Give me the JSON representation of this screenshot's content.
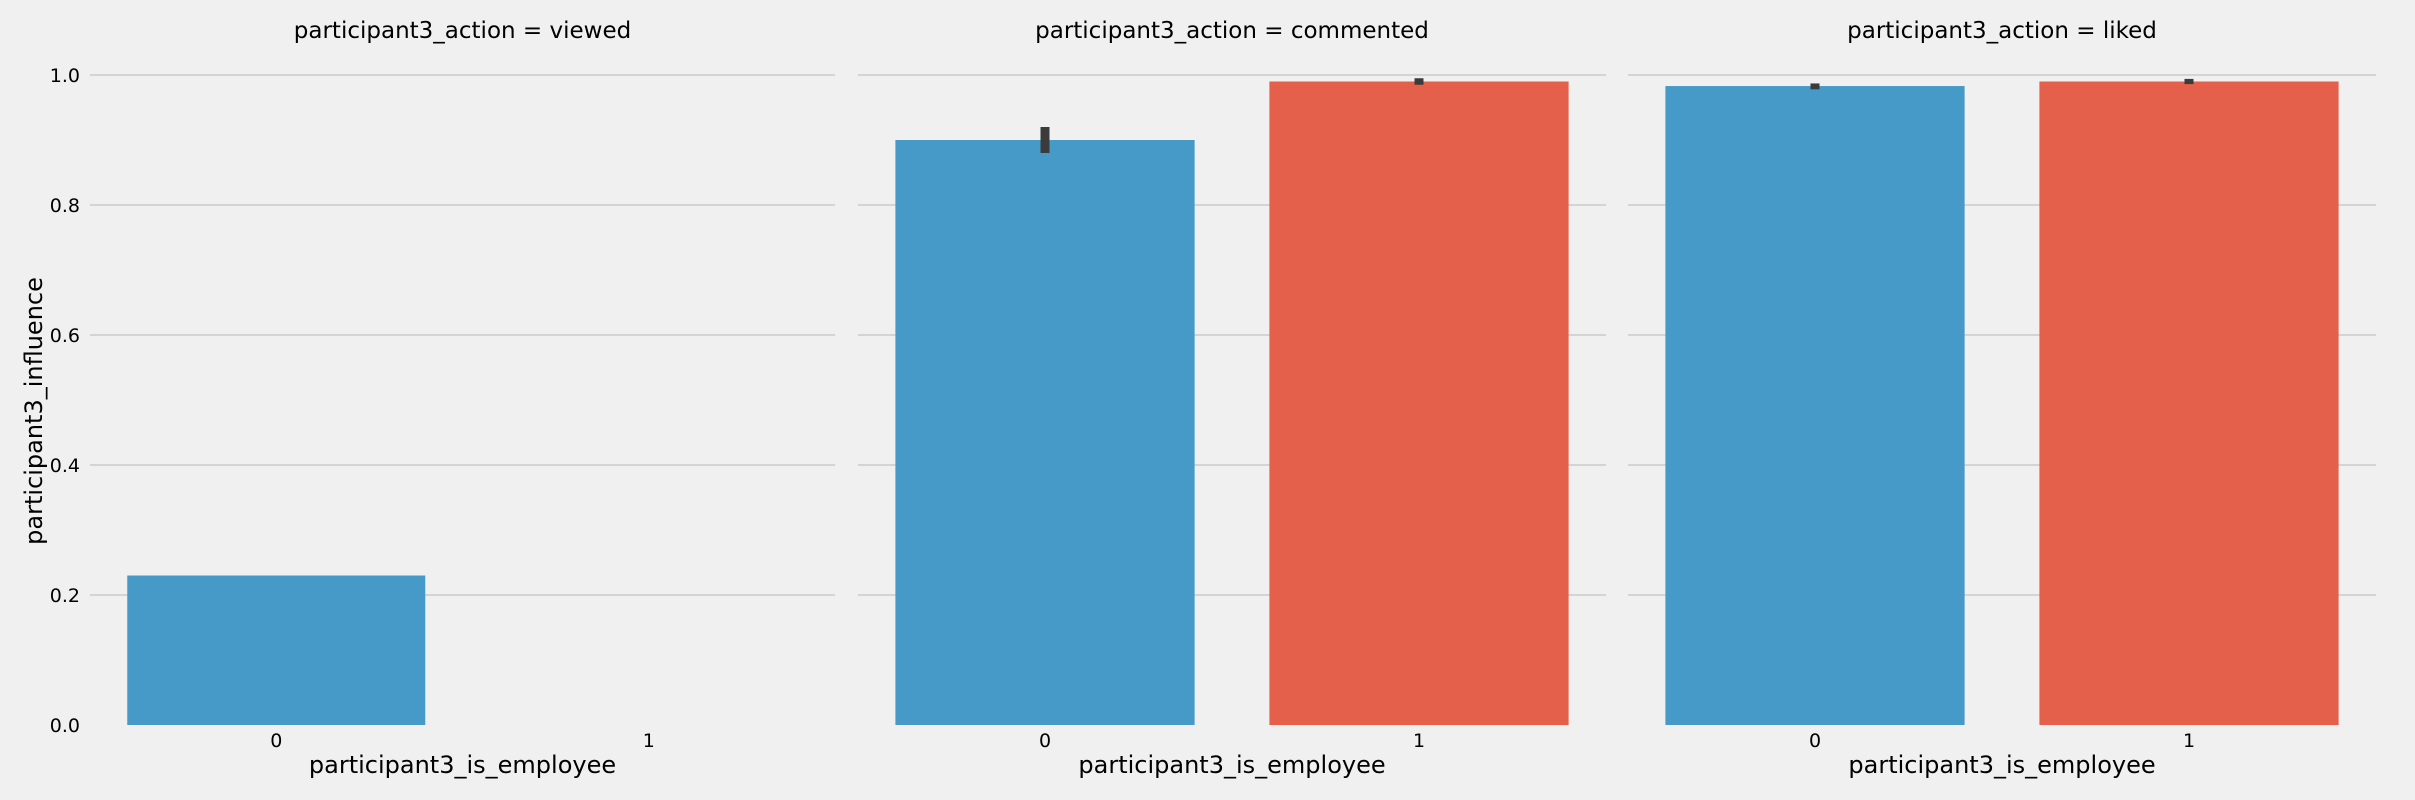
{
  "colors": {
    "background": "#f0f0f0",
    "grid": "#cbcbcb",
    "employee_0": "#459ac7",
    "employee_1": "#e5604a",
    "error_bar": "#3b3b3b"
  },
  "chart_data": {
    "type": "bar",
    "layout": "facet-grid-3-columns",
    "grid": true,
    "sharey": true,
    "ylabel": "participant3_influence",
    "ylim": [
      0,
      1.0
    ],
    "yticks": [
      "0.0",
      "0.2",
      "0.4",
      "0.6",
      "0.8",
      "1.0"
    ],
    "facets": [
      {
        "title": "participant3_action = viewed",
        "xlabel": "participant3_is_employee",
        "categories": [
          "0",
          "1"
        ],
        "values": [
          0.23,
          null
        ],
        "errors": [
          null,
          null
        ]
      },
      {
        "title": "participant3_action = commented",
        "xlabel": "participant3_is_employee",
        "categories": [
          "0",
          "1"
        ],
        "values": [
          0.9,
          0.99
        ],
        "errors": [
          [
            0.88,
            0.92
          ],
          [
            0.985,
            0.995
          ]
        ]
      },
      {
        "title": "participant3_action = liked",
        "xlabel": "participant3_is_employee",
        "categories": [
          "0",
          "1"
        ],
        "values": [
          0.983,
          0.99
        ],
        "errors": [
          [
            0.978,
            0.987
          ],
          [
            0.986,
            0.994
          ]
        ]
      }
    ]
  }
}
